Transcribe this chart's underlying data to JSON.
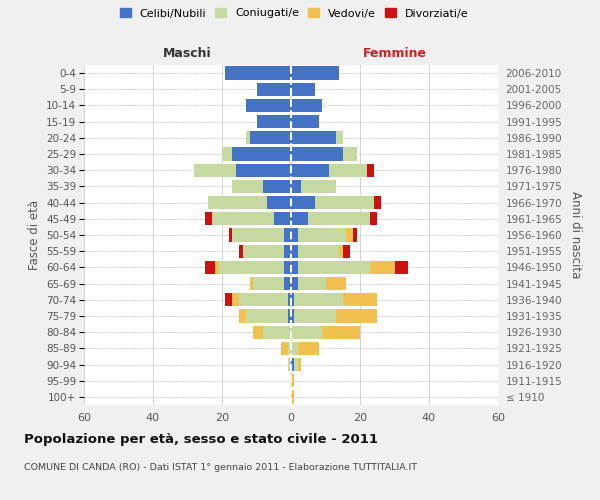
{
  "age_groups": [
    "100+",
    "95-99",
    "90-94",
    "85-89",
    "80-84",
    "75-79",
    "70-74",
    "65-69",
    "60-64",
    "55-59",
    "50-54",
    "45-49",
    "40-44",
    "35-39",
    "30-34",
    "25-29",
    "20-24",
    "15-19",
    "10-14",
    "5-9",
    "0-4"
  ],
  "birth_years": [
    "≤ 1910",
    "1911-1915",
    "1916-1920",
    "1921-1925",
    "1926-1930",
    "1931-1935",
    "1936-1940",
    "1941-1945",
    "1946-1950",
    "1951-1955",
    "1956-1960",
    "1961-1965",
    "1966-1970",
    "1971-1975",
    "1976-1980",
    "1981-1985",
    "1986-1990",
    "1991-1995",
    "1996-2000",
    "2001-2005",
    "2006-2010"
  ],
  "colors": {
    "celibe": "#4472c4",
    "coniugato": "#c5d9a0",
    "vedovo": "#f0c050",
    "divorziato": "#cc1111"
  },
  "maschi": {
    "celibe": [
      0,
      0,
      0,
      0,
      0,
      1,
      1,
      2,
      2,
      2,
      2,
      5,
      7,
      8,
      16,
      17,
      12,
      10,
      13,
      10,
      19
    ],
    "coniugato": [
      0,
      0,
      1,
      1,
      8,
      12,
      14,
      9,
      19,
      12,
      15,
      18,
      17,
      9,
      12,
      3,
      1,
      0,
      0,
      0,
      0
    ],
    "vedovo": [
      0,
      0,
      0,
      2,
      3,
      2,
      2,
      1,
      1,
      0,
      0,
      0,
      0,
      0,
      0,
      0,
      0,
      0,
      0,
      0,
      0
    ],
    "divorziato": [
      0,
      0,
      0,
      0,
      0,
      0,
      2,
      0,
      3,
      1,
      1,
      2,
      0,
      0,
      0,
      0,
      0,
      0,
      0,
      0,
      0
    ]
  },
  "femmine": {
    "nubile": [
      0,
      0,
      1,
      0,
      0,
      1,
      1,
      2,
      2,
      2,
      2,
      5,
      7,
      3,
      11,
      15,
      13,
      8,
      9,
      7,
      14
    ],
    "coniugata": [
      0,
      0,
      1,
      2,
      9,
      12,
      14,
      8,
      21,
      12,
      14,
      18,
      17,
      10,
      11,
      4,
      2,
      0,
      0,
      0,
      0
    ],
    "vedova": [
      1,
      1,
      1,
      6,
      11,
      12,
      10,
      6,
      7,
      1,
      2,
      0,
      0,
      0,
      0,
      0,
      0,
      0,
      0,
      0,
      0
    ],
    "divorziata": [
      0,
      0,
      0,
      0,
      0,
      0,
      0,
      0,
      4,
      2,
      1,
      2,
      2,
      0,
      2,
      0,
      0,
      0,
      0,
      0,
      0
    ]
  },
  "xlim": 60,
  "title": "Popolazione per età, sesso e stato civile - 2011",
  "subtitle": "COMUNE DI CANDA (RO) - Dati ISTAT 1° gennaio 2011 - Elaborazione TUTTITALIA.IT",
  "ylabel_left": "Fasce di età",
  "ylabel_right": "Anni di nascita",
  "xlabel_maschi": "Maschi",
  "xlabel_femmine": "Femmine",
  "bg_color": "#f0f0f0",
  "plot_bg": "#ffffff",
  "legend_labels": [
    "Celibi/Nubili",
    "Coniugati/e",
    "Vedovi/e",
    "Divorziati/e"
  ]
}
